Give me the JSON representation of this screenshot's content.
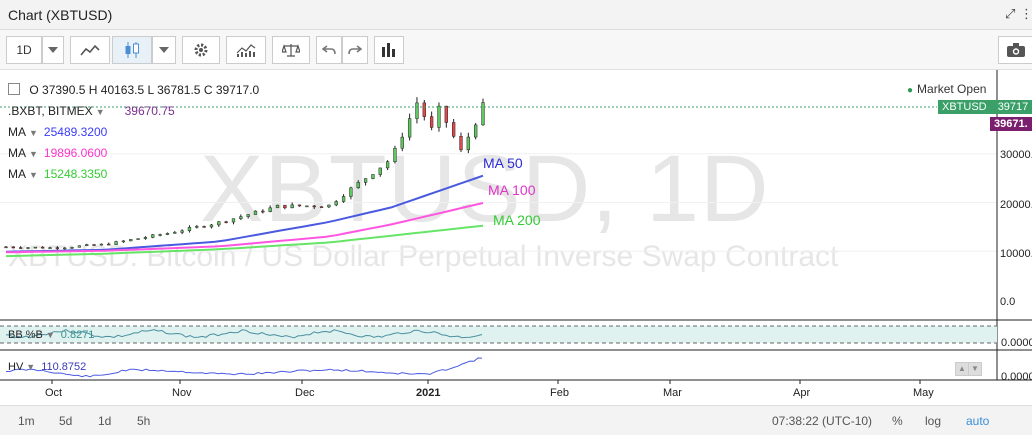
{
  "window": {
    "title": "Chart (XBTUSD)"
  },
  "toolbar": {
    "interval_label": "1D"
  },
  "watermark": {
    "main": "XBTUSD, 1D",
    "sub": "XBTUSD: Bitcoin / US Dollar Perpetual Inverse Swap Contract"
  },
  "ohlc": {
    "o_label": "O",
    "o": "37390.5",
    "h_label": "H",
    "h": "40163.5",
    "l_label": "L",
    "l": "36781.5",
    "c_label": "C",
    "c": "39717.0"
  },
  "market_status": "Market Open",
  "studies": [
    {
      "name": ".BXBT, BITMEX",
      "value": "39670.75",
      "color": "#7a2e8c"
    },
    {
      "name": "MA",
      "value": "25489.3200",
      "color": "#3a3aff"
    },
    {
      "name": "MA",
      "value": "19896.0600",
      "color": "#ff33cc"
    },
    {
      "name": "MA",
      "value": "15248.3350",
      "color": "#33cc33"
    }
  ],
  "ma_labels": [
    {
      "text": "MA 50",
      "color": "#2b2bd6"
    },
    {
      "text": "MA 100",
      "color": "#e033c8"
    },
    {
      "text": "MA 200",
      "color": "#33cc33"
    }
  ],
  "price_labels": {
    "symbol": "XBTUSD",
    "symbol_value": "39717",
    "bxbt_value": "39671.",
    "symbol_color": "#3aa068",
    "bxbt_color": "#7a1f6e"
  },
  "y_axis": [
    "30000.",
    "20000.",
    "10000.",
    "0.0"
  ],
  "bb_pane": {
    "name": "BB %B",
    "value": "0.8271",
    "axis": "0.0000"
  },
  "hv_pane": {
    "name": "HV",
    "value": "110.8752",
    "axis": "0.0000"
  },
  "x_axis": [
    {
      "label": "Oct",
      "bold": false
    },
    {
      "label": "Nov",
      "bold": false
    },
    {
      "label": "Dec",
      "bold": false
    },
    {
      "label": "2021",
      "bold": true
    },
    {
      "label": "Feb",
      "bold": false
    },
    {
      "label": "Mar",
      "bold": false
    },
    {
      "label": "Apr",
      "bold": false
    },
    {
      "label": "May",
      "bold": false
    }
  ],
  "footer": {
    "ranges": [
      "1m",
      "5d",
      "1d",
      "5h"
    ],
    "time": "07:38:22 (UTC-10)",
    "percent": "%",
    "log": "log",
    "auto": "auto"
  },
  "chart_data": {
    "type": "line",
    "series": [
      {
        "name": "XBTUSD",
        "x": [
          "2020-09-18",
          "2020-10-01",
          "2020-10-15",
          "2020-11-01",
          "2020-11-15",
          "2020-12-01",
          "2020-12-15",
          "2021-01-01",
          "2021-01-08",
          "2021-01-12",
          "2021-01-14",
          "2021-01-16",
          "2021-01-20",
          "2021-01-23",
          "2021-01-26"
        ],
        "values": [
          10900,
          10700,
          11400,
          13700,
          15900,
          19200,
          19400,
          29000,
          40500,
          35000,
          39000,
          36500,
          30500,
          35000,
          39717
        ]
      },
      {
        "name": "MA 50",
        "x": [
          "2020-09-18",
          "2020-10-15",
          "2020-11-15",
          "2020-12-15",
          "2021-01-01",
          "2021-01-26"
        ],
        "values": [
          9900,
          10300,
          12000,
          16000,
          19000,
          25489
        ]
      },
      {
        "name": "MA 100",
        "x": [
          "2020-09-18",
          "2020-10-15",
          "2020-11-15",
          "2020-12-15",
          "2021-01-01",
          "2021-01-26"
        ],
        "values": [
          9800,
          10100,
          11000,
          13000,
          15500,
          19896
        ]
      },
      {
        "name": "MA 200",
        "x": [
          "2020-09-18",
          "2020-10-15",
          "2020-11-15",
          "2020-12-15",
          "2021-01-01",
          "2021-01-26"
        ],
        "values": [
          9000,
          9500,
          10400,
          11800,
          13200,
          15248
        ]
      }
    ],
    "ylim": [
      0,
      42000
    ],
    "grid": true,
    "legend": "top-left"
  }
}
